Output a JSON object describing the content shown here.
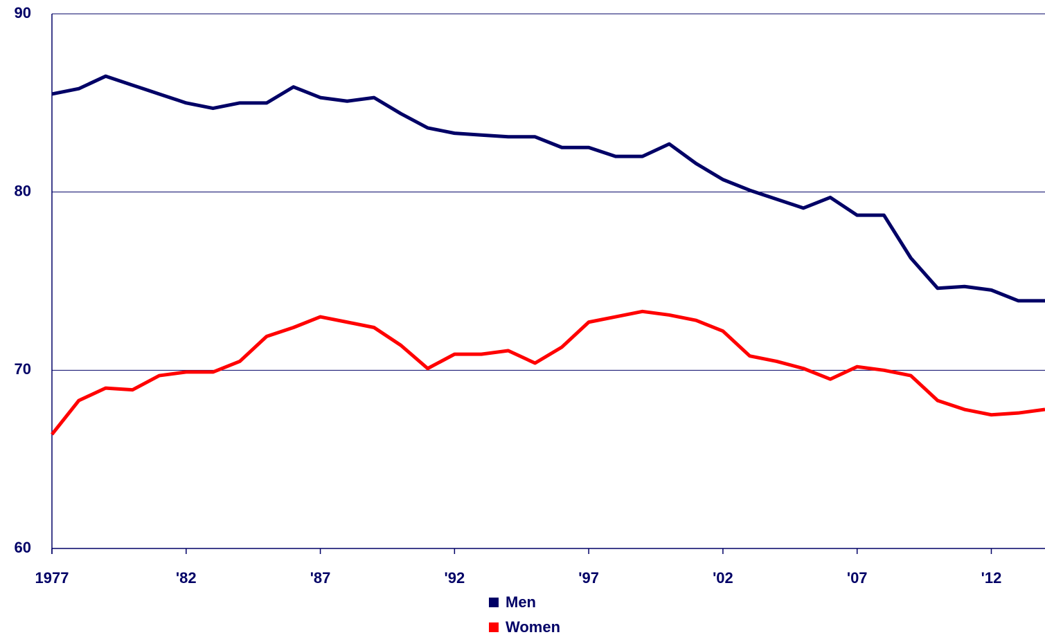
{
  "chart_data": {
    "type": "line",
    "x": [
      1977,
      1978,
      1979,
      1980,
      1981,
      1982,
      1983,
      1984,
      1985,
      1986,
      1987,
      1988,
      1989,
      1990,
      1991,
      1992,
      1993,
      1994,
      1995,
      1996,
      1997,
      1998,
      1999,
      2000,
      2001,
      2002,
      2003,
      2004,
      2005,
      2006,
      2007,
      2008,
      2009,
      2010,
      2011,
      2012,
      2013,
      2014
    ],
    "series": [
      {
        "name": "Men",
        "color": "#000066",
        "values": [
          85.5,
          85.8,
          86.5,
          86.0,
          85.5,
          85.0,
          84.7,
          85.0,
          85.0,
          85.9,
          85.3,
          85.1,
          85.3,
          84.4,
          83.6,
          83.3,
          83.2,
          83.1,
          83.1,
          82.5,
          82.5,
          82.0,
          82.0,
          82.7,
          81.6,
          80.7,
          80.1,
          79.6,
          79.1,
          79.7,
          78.7,
          78.7,
          76.3,
          74.6,
          74.7,
          74.5,
          73.9,
          73.9
        ]
      },
      {
        "name": "Women",
        "color": "#ff0000",
        "values": [
          66.4,
          68.3,
          69.0,
          68.9,
          69.7,
          69.9,
          69.9,
          70.5,
          71.9,
          72.4,
          73.0,
          72.7,
          72.4,
          71.4,
          70.1,
          70.9,
          70.9,
          71.1,
          70.4,
          71.3,
          72.7,
          73.0,
          73.3,
          73.1,
          72.8,
          72.2,
          70.8,
          70.5,
          70.1,
          69.5,
          70.2,
          70.0,
          69.7,
          68.3,
          67.8,
          67.5,
          67.6,
          67.8
        ]
      }
    ],
    "xlim": [
      1977,
      2014
    ],
    "xticks": [
      1977,
      {
        "value": 1982,
        "label": "'82"
      },
      {
        "value": 1987,
        "label": "'87"
      },
      {
        "value": 1992,
        "label": "'92"
      },
      {
        "value": 1997,
        "label": "'97"
      },
      {
        "value": 2002,
        "label": "'02"
      },
      {
        "value": 2007,
        "label": "'07"
      },
      {
        "value": 2012,
        "label": "'12"
      }
    ],
    "ylim": [
      60,
      90
    ],
    "yticks": [
      60,
      70,
      80,
      90
    ],
    "grid": true,
    "legend": "bottom"
  }
}
